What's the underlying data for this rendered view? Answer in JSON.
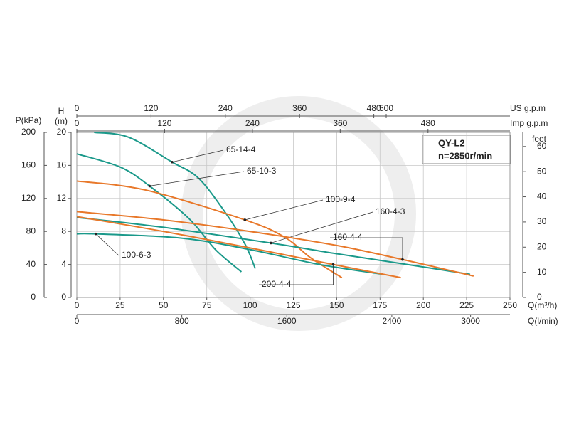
{
  "chart_data": {
    "type": "line",
    "title": "QY-L2",
    "subtitle": "n=2850r/min",
    "x_label": "Q(m³/h)",
    "y_label_lines": [
      "H",
      "(m)"
    ],
    "xlim": [
      0,
      250
    ],
    "xticks": [
      0,
      25,
      50,
      75,
      100,
      125,
      150,
      175,
      200,
      225,
      250
    ],
    "ylim": [
      0,
      20
    ],
    "yticks": [
      0,
      4,
      8,
      12,
      16,
      20
    ],
    "y2_label": "P(kPa)",
    "y2lim": [
      0,
      200
    ],
    "y2ticks": [
      0,
      40,
      80,
      120,
      160,
      200
    ],
    "y3_label": "feet",
    "y3lim": [
      0,
      65.6
    ],
    "y3ticks": [
      0,
      10,
      20,
      30,
      40,
      50,
      60
    ],
    "x2_label": "US g.p.m",
    "x2lim": [
      0,
      700
    ],
    "x2ticks": [
      0,
      120,
      240,
      360,
      480,
      500
    ],
    "x3_label": "Imp g.p.m",
    "x3lim": [
      0,
      592
    ],
    "x3ticks": [
      0,
      120,
      240,
      360,
      480
    ],
    "x4_label": "Q(l/min)",
    "x4lim": [
      0,
      3300
    ],
    "x4ticks": [
      0,
      800,
      1600,
      2400,
      3000
    ],
    "grid": true,
    "series": [
      {
        "name": "65-14-4",
        "color": "#1a998a",
        "x": [
          10,
          30,
          55,
          70,
          85,
          97,
          103
        ],
        "values": [
          20,
          19.4,
          16.4,
          14.5,
          10.5,
          6.5,
          3.5
        ]
      },
      {
        "name": "65-10-3",
        "color": "#1a998a",
        "x": [
          0,
          25,
          42,
          65,
          80,
          95
        ],
        "values": [
          17.4,
          15.8,
          13.5,
          9.5,
          5.8,
          3.1
        ]
      },
      {
        "name": "100-9-4",
        "color": "#e8782a",
        "x": [
          0,
          40,
          97,
          120,
          135,
          153
        ],
        "values": [
          14.1,
          13,
          9.4,
          7.3,
          4.8,
          2.4
        ]
      },
      {
        "name": "160-4-3",
        "color": "#1a998a",
        "x": [
          0,
          50,
          112,
          150,
          200,
          227
        ],
        "values": [
          9.7,
          8.5,
          6.6,
          5.3,
          3.7,
          2.8
        ]
      },
      {
        "name": "160-4-4",
        "color": "#e8782a",
        "x": [
          0,
          50,
          100,
          150,
          188,
          229
        ],
        "values": [
          10.4,
          9.4,
          8,
          6.3,
          4.6,
          2.6
        ]
      },
      {
        "name": "100-6-3",
        "color": "#1a998a",
        "x": [
          0,
          11,
          60,
          100,
          140,
          177
        ],
        "values": [
          7.7,
          7.7,
          7.2,
          5.8,
          4,
          2.8
        ]
      },
      {
        "name": "200-4-4",
        "color": "#e8782a",
        "x": [
          0,
          50,
          100,
          148,
          187
        ],
        "values": [
          9.8,
          8,
          6,
          4,
          2.4
        ]
      }
    ]
  }
}
